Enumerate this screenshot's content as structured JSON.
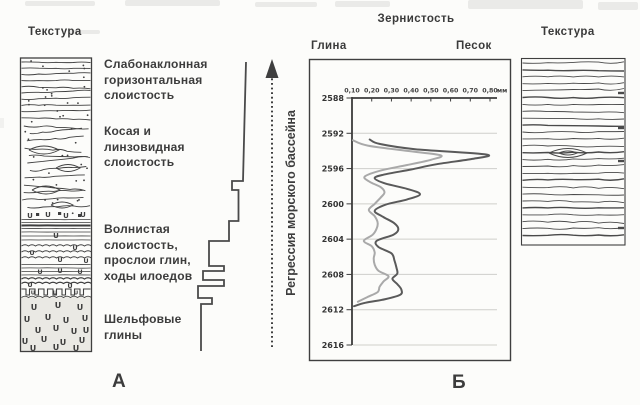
{
  "figure": {
    "panel_a": {
      "marker": "А",
      "texture_header": "Текстура",
      "layers": [
        {
          "label": "Слабонаклонная\nгоризонтальная\nслоистость"
        },
        {
          "label": "Косая и\nлинзовидная\nслоистость"
        },
        {
          "label": "Волнистая\nслоистость,\nпрослои глин,\nходы илоедов"
        },
        {
          "label": "Шельфовые\nглины"
        }
      ],
      "grain_profile_points": [
        [
          246,
          62
        ],
        [
          244.5,
          120
        ],
        [
          243,
          181
        ],
        [
          232,
          181
        ],
        [
          232,
          190
        ],
        [
          238.5,
          190
        ],
        [
          238.5,
          221
        ],
        [
          229,
          221
        ],
        [
          229,
          241
        ],
        [
          209,
          241
        ],
        [
          209,
          266
        ],
        [
          224,
          266
        ],
        [
          224,
          271
        ],
        [
          203,
          271
        ],
        [
          203,
          280
        ],
        [
          224,
          280
        ],
        [
          224,
          286
        ],
        [
          198,
          286
        ],
        [
          198,
          298
        ],
        [
          212,
          298
        ],
        [
          212,
          304
        ],
        [
          201,
          304
        ],
        [
          201,
          351
        ]
      ]
    },
    "regression_arrow": {
      "label": "Регрессия морского бассейна",
      "direction": "up"
    },
    "panel_b": {
      "marker": "Б"
    },
    "right_texture": {
      "header": "Текстура"
    }
  },
  "chart_data": {
    "type": "line",
    "title": "Зернистость",
    "xlabel_left": "Глина",
    "xlabel_right": "Песок",
    "x_unit": "мм",
    "x_ticks": [
      "0,10",
      "0,20",
      "0,30",
      "0,40",
      "0,50",
      "0,60",
      "0,70",
      "0,80"
    ],
    "x_tick_values": [
      0.1,
      0.2,
      0.3,
      0.4,
      0.5,
      0.6,
      0.7,
      0.8
    ],
    "y_ticks": [
      2588,
      2592,
      2596,
      2600,
      2604,
      2608,
      2612,
      2616
    ],
    "xlim": [
      0.1,
      0.8
    ],
    "ylim": [
      2588,
      2616
    ],
    "grid": true,
    "series": [
      {
        "id": "grain-size-coarse",
        "color": "#5a5a5a",
        "points": [
          [
            2592.7,
            0.19
          ],
          [
            2593.2,
            0.24
          ],
          [
            2593.8,
            0.42
          ],
          [
            2594.4,
            0.78
          ],
          [
            2594.9,
            0.71
          ],
          [
            2595.5,
            0.53
          ],
          [
            2596.1,
            0.4
          ],
          [
            2596.7,
            0.26
          ],
          [
            2597.1,
            0.215
          ],
          [
            2597.7,
            0.27
          ],
          [
            2598.3,
            0.38
          ],
          [
            2598.9,
            0.445
          ],
          [
            2599.5,
            0.38
          ],
          [
            2600.1,
            0.27
          ],
          [
            2600.8,
            0.215
          ],
          [
            2601.5,
            0.26
          ],
          [
            2602.2,
            0.315
          ],
          [
            2602.9,
            0.335
          ],
          [
            2603.5,
            0.31
          ],
          [
            2604.2,
            0.225
          ],
          [
            2604.9,
            0.235
          ],
          [
            2605.6,
            0.3
          ],
          [
            2606.4,
            0.315
          ],
          [
            2607.2,
            0.325
          ],
          [
            2607.9,
            0.33
          ],
          [
            2608.5,
            0.305
          ],
          [
            2609.1,
            0.33
          ],
          [
            2609.7,
            0.35
          ],
          [
            2610.3,
            0.345
          ],
          [
            2610.8,
            0.27
          ],
          [
            2611.2,
            0.17
          ],
          [
            2611.6,
            0.11
          ]
        ]
      },
      {
        "id": "grain-size-fine",
        "color": "#a9a9a9",
        "points": [
          [
            2592.8,
            0.105
          ],
          [
            2593.4,
            0.18
          ],
          [
            2594.0,
            0.38
          ],
          [
            2594.5,
            0.55
          ],
          [
            2595.0,
            0.5
          ],
          [
            2595.6,
            0.38
          ],
          [
            2596.2,
            0.25
          ],
          [
            2596.9,
            0.165
          ],
          [
            2597.5,
            0.19
          ],
          [
            2598.1,
            0.245
          ],
          [
            2598.7,
            0.265
          ],
          [
            2599.3,
            0.245
          ],
          [
            2600.0,
            0.215
          ],
          [
            2600.7,
            0.185
          ],
          [
            2601.4,
            0.215
          ],
          [
            2602.1,
            0.23
          ],
          [
            2602.8,
            0.225
          ],
          [
            2603.5,
            0.205
          ],
          [
            2604.2,
            0.16
          ],
          [
            2604.8,
            0.2
          ],
          [
            2605.5,
            0.215
          ],
          [
            2606.2,
            0.21
          ],
          [
            2606.9,
            0.215
          ],
          [
            2607.6,
            0.235
          ],
          [
            2608.2,
            0.285
          ],
          [
            2608.8,
            0.26
          ],
          [
            2609.4,
            0.24
          ],
          [
            2610.0,
            0.23
          ],
          [
            2610.6,
            0.175
          ],
          [
            2611.1,
            0.13
          ]
        ]
      }
    ]
  },
  "colors": {
    "ink": "#3f3f3f",
    "grid": "#cfcfcb",
    "shelf_fill": "#eae9e4",
    "curve_dark": "#5a5a5a",
    "curve_light": "#a9a9a9"
  }
}
